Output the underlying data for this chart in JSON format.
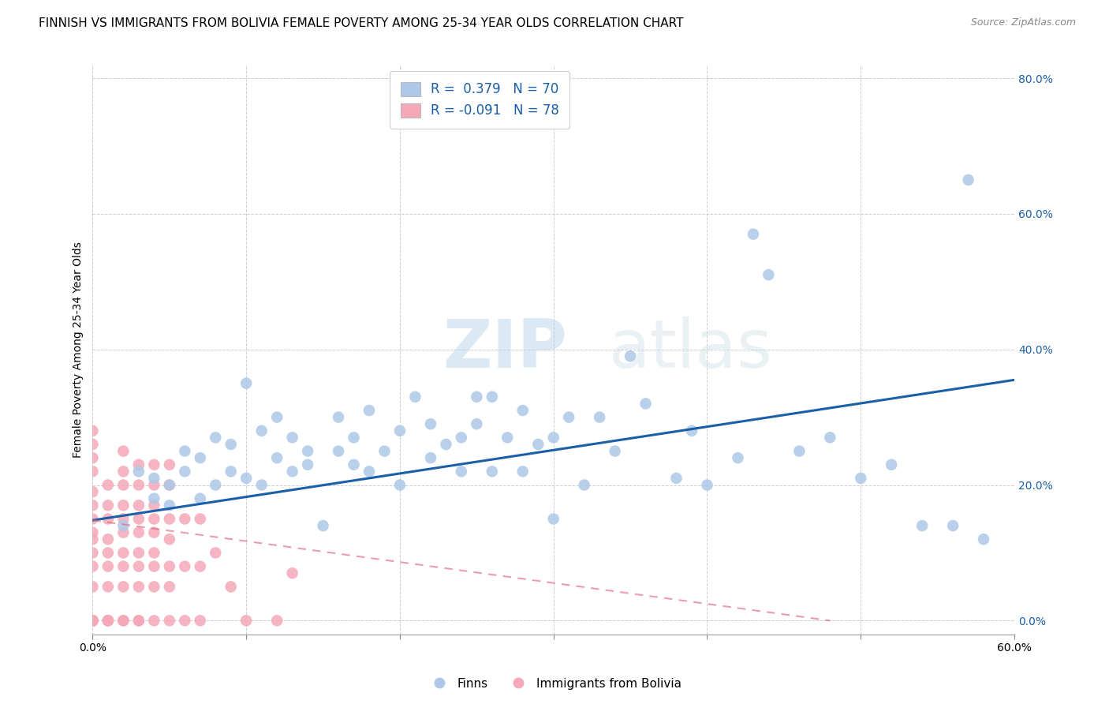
{
  "title": "FINNISH VS IMMIGRANTS FROM BOLIVIA FEMALE POVERTY AMONG 25-34 YEAR OLDS CORRELATION CHART",
  "source": "Source: ZipAtlas.com",
  "ylabel": "Female Poverty Among 25-34 Year Olds",
  "xlim": [
    0.0,
    0.6
  ],
  "ylim": [
    -0.02,
    0.82
  ],
  "series1_name": "Finns",
  "series1_R": 0.379,
  "series1_N": 70,
  "series1_color": "#adc8e8",
  "series1_line_color": "#1a5fa8",
  "series2_name": "Immigrants from Bolivia",
  "series2_R": -0.091,
  "series2_N": 78,
  "series2_color": "#f4a8b8",
  "series2_line_color": "#e06880",
  "legend_R_color": "#1a5fa8",
  "background_color": "#ffffff",
  "watermark_zip": "ZIP",
  "watermark_atlas": "atlas",
  "title_fontsize": 11,
  "axis_label_fontsize": 10,
  "tick_fontsize": 10,
  "right_tick_color": "#1a5fa8",
  "finns_x": [
    0.02,
    0.03,
    0.04,
    0.04,
    0.05,
    0.05,
    0.06,
    0.06,
    0.07,
    0.07,
    0.08,
    0.08,
    0.09,
    0.09,
    0.1,
    0.1,
    0.11,
    0.11,
    0.12,
    0.12,
    0.13,
    0.13,
    0.14,
    0.14,
    0.15,
    0.16,
    0.16,
    0.17,
    0.17,
    0.18,
    0.18,
    0.19,
    0.2,
    0.2,
    0.21,
    0.22,
    0.22,
    0.23,
    0.24,
    0.24,
    0.25,
    0.25,
    0.26,
    0.26,
    0.27,
    0.28,
    0.28,
    0.29,
    0.3,
    0.3,
    0.31,
    0.32,
    0.33,
    0.34,
    0.35,
    0.36,
    0.38,
    0.39,
    0.4,
    0.42,
    0.43,
    0.44,
    0.46,
    0.48,
    0.5,
    0.52,
    0.54,
    0.56,
    0.57,
    0.58
  ],
  "finns_y": [
    0.14,
    0.22,
    0.18,
    0.21,
    0.17,
    0.2,
    0.22,
    0.25,
    0.18,
    0.24,
    0.2,
    0.27,
    0.22,
    0.26,
    0.21,
    0.35,
    0.2,
    0.28,
    0.24,
    0.3,
    0.22,
    0.27,
    0.25,
    0.23,
    0.14,
    0.25,
    0.3,
    0.23,
    0.27,
    0.22,
    0.31,
    0.25,
    0.2,
    0.28,
    0.33,
    0.24,
    0.29,
    0.26,
    0.27,
    0.22,
    0.29,
    0.33,
    0.22,
    0.33,
    0.27,
    0.31,
    0.22,
    0.26,
    0.15,
    0.27,
    0.3,
    0.2,
    0.3,
    0.25,
    0.39,
    0.32,
    0.21,
    0.28,
    0.2,
    0.24,
    0.57,
    0.51,
    0.25,
    0.27,
    0.21,
    0.23,
    0.14,
    0.14,
    0.65,
    0.12
  ],
  "bolivia_x": [
    0.0,
    0.0,
    0.0,
    0.0,
    0.0,
    0.0,
    0.0,
    0.0,
    0.0,
    0.0,
    0.0,
    0.0,
    0.0,
    0.0,
    0.0,
    0.0,
    0.0,
    0.0,
    0.0,
    0.0,
    0.01,
    0.01,
    0.01,
    0.01,
    0.01,
    0.01,
    0.01,
    0.01,
    0.01,
    0.01,
    0.02,
    0.02,
    0.02,
    0.02,
    0.02,
    0.02,
    0.02,
    0.02,
    0.02,
    0.02,
    0.02,
    0.03,
    0.03,
    0.03,
    0.03,
    0.03,
    0.03,
    0.03,
    0.03,
    0.03,
    0.03,
    0.04,
    0.04,
    0.04,
    0.04,
    0.04,
    0.04,
    0.04,
    0.04,
    0.04,
    0.05,
    0.05,
    0.05,
    0.05,
    0.05,
    0.05,
    0.05,
    0.06,
    0.06,
    0.06,
    0.07,
    0.07,
    0.07,
    0.08,
    0.09,
    0.1,
    0.12,
    0.13
  ],
  "bolivia_y": [
    0.0,
    0.0,
    0.0,
    0.0,
    0.0,
    0.0,
    0.0,
    0.0,
    0.05,
    0.08,
    0.1,
    0.12,
    0.13,
    0.15,
    0.17,
    0.19,
    0.22,
    0.24,
    0.26,
    0.28,
    0.0,
    0.0,
    0.0,
    0.05,
    0.08,
    0.1,
    0.12,
    0.15,
    0.17,
    0.2,
    0.0,
    0.0,
    0.05,
    0.08,
    0.1,
    0.13,
    0.15,
    0.17,
    0.2,
    0.22,
    0.25,
    0.0,
    0.0,
    0.05,
    0.08,
    0.1,
    0.13,
    0.15,
    0.17,
    0.2,
    0.23,
    0.0,
    0.05,
    0.08,
    0.1,
    0.13,
    0.15,
    0.17,
    0.2,
    0.23,
    0.0,
    0.05,
    0.08,
    0.12,
    0.15,
    0.2,
    0.23,
    0.0,
    0.08,
    0.15,
    0.0,
    0.08,
    0.15,
    0.1,
    0.05,
    0.0,
    0.0,
    0.07
  ],
  "finns_trend_x": [
    0.0,
    0.6
  ],
  "finns_trend_y": [
    0.148,
    0.355
  ],
  "bolivia_trend_x": [
    0.0,
    0.48
  ],
  "bolivia_trend_y": [
    0.148,
    0.0
  ]
}
